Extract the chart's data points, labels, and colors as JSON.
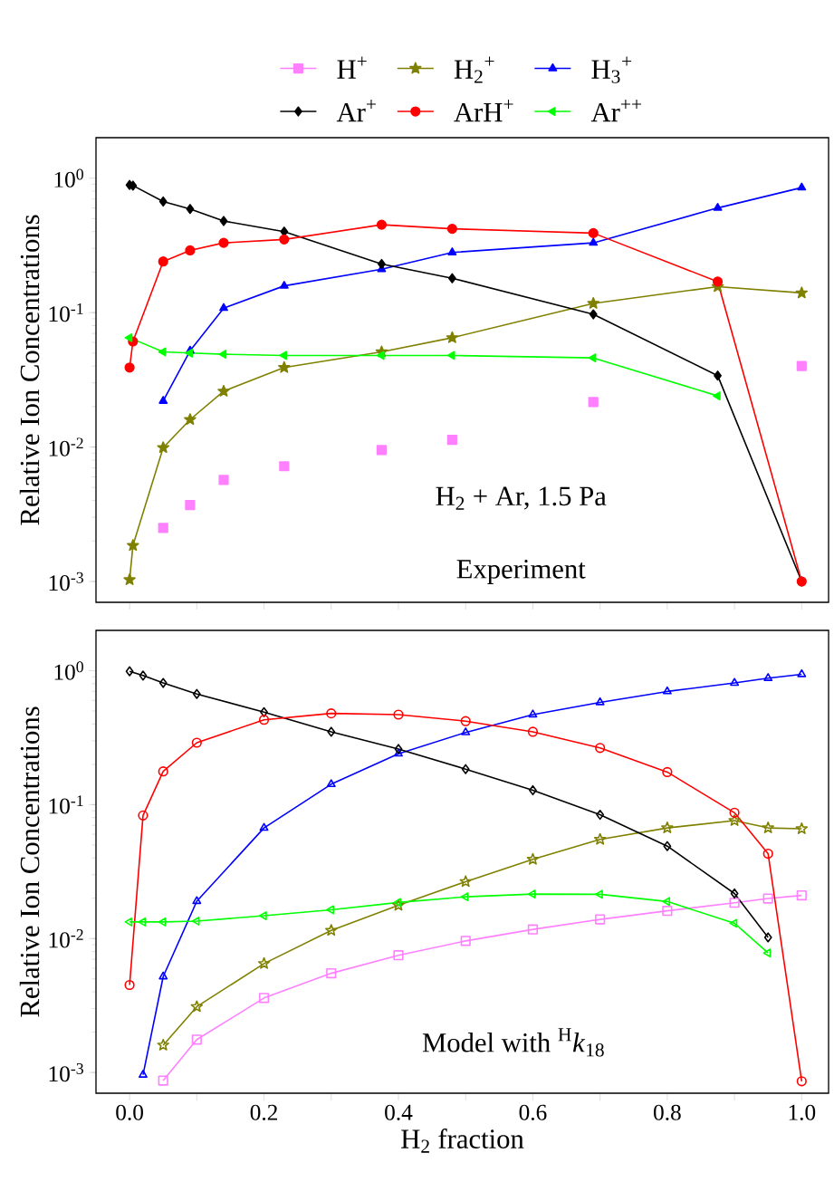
{
  "chart_data": [
    {
      "type": "line",
      "ylabel": "Relative Ion Concentrations",
      "annotations": [
        "H$_{2}$ + Ar, 1.5 Pa",
        "Experiment"
      ],
      "x": [
        0,
        0.005,
        0.05,
        0.09,
        0.14,
        0.23,
        0.375,
        0.48,
        0.69,
        0.875,
        1.0
      ],
      "xlim": [
        -0.05,
        1.04
      ],
      "xticks": [
        {
          "value": 0,
          "label": null
        },
        {
          "value": 0.1,
          "label": null
        },
        {
          "value": 0.2,
          "label": null
        },
        {
          "value": 0.3,
          "label": null
        },
        {
          "value": 0.4,
          "label": null
        },
        {
          "value": 0.5,
          "label": null
        },
        {
          "value": 0.6,
          "label": null
        },
        {
          "value": 0.7,
          "label": null
        },
        {
          "value": 0.8,
          "label": null
        },
        {
          "value": 0.9,
          "label": null
        },
        {
          "value": 1.0,
          "label": null
        }
      ],
      "ylim": [
        0.0007,
        2
      ],
      "yticks": [
        {
          "value": 0.001,
          "label": "10$^{-3}$"
        },
        {
          "value": 0.01,
          "label": "10$^{-2}$"
        },
        {
          "value": 0.1,
          "label": "10$^{-1}$"
        },
        {
          "value": 1,
          "label": "10$^{0}$"
        }
      ],
      "log": "y",
      "tick_labels": "y",
      "legend": "top",
      "line_style": "solid",
      "series": [
        {
          "name": "H$^{+}$",
          "type": "scatter",
          "marker": "square",
          "color": "#ff80ff",
          "values": [
            null,
            null,
            0.0025,
            0.0037,
            0.0057,
            0.0072,
            0.0095,
            0.0113,
            0.0216,
            null,
            0.04
          ]
        },
        {
          "name": "H$_{2}$$^{+}$",
          "marker": "star",
          "color": "#808000",
          "values": [
            0.00103,
            0.00185,
            0.0099,
            0.016,
            0.026,
            0.039,
            0.051,
            0.065,
            0.117,
            0.156,
            0.14
          ]
        },
        {
          "name": "H$_{3}$$^{+}$",
          "marker": "triangle",
          "color": "#0000ff",
          "values": [
            null,
            null,
            0.022,
            0.052,
            0.108,
            0.158,
            0.21,
            0.28,
            0.33,
            0.6,
            0.85
          ]
        },
        {
          "name": "Ar$^{+}$",
          "marker": "diamond",
          "color": "#000000",
          "values": [
            0.89,
            0.88,
            0.67,
            0.59,
            0.48,
            0.4,
            0.23,
            0.18,
            0.097,
            0.034,
            0.001
          ]
        },
        {
          "name": "ArH$^{+}$",
          "marker": "circle",
          "color": "#ff0000",
          "values": [
            0.039,
            0.061,
            0.24,
            0.29,
            0.33,
            0.35,
            0.45,
            0.42,
            0.39,
            0.17,
            0.001
          ]
        },
        {
          "name": "Ar$^{++}$",
          "marker": "triangle-left",
          "color": "#00ff00",
          "values": [
            0.065,
            null,
            0.051,
            0.05,
            0.049,
            0.048,
            0.048,
            0.048,
            0.046,
            0.024,
            null
          ]
        }
      ]
    },
    {
      "type": "line",
      "xlabel": "H$_{2}$ fraction",
      "ylabel": "Relative Ion Concentrations",
      "annotations": [
        "Model with $^{H}$*k*$_{18}$"
      ],
      "x": [
        0,
        0.02,
        0.05,
        0.1,
        0.2,
        0.3,
        0.4,
        0.5,
        0.6,
        0.7,
        0.8,
        0.9,
        0.95,
        1.0
      ],
      "xlim": [
        -0.05,
        1.04
      ],
      "xticks": [
        {
          "value": 0,
          "label": "0.0"
        },
        {
          "value": 0.1,
          "label": null
        },
        {
          "value": 0.2,
          "label": "0.2"
        },
        {
          "value": 0.3,
          "label": null
        },
        {
          "value": 0.4,
          "label": "0.4"
        },
        {
          "value": 0.5,
          "label": null
        },
        {
          "value": 0.6,
          "label": "0.6"
        },
        {
          "value": 0.7,
          "label": null
        },
        {
          "value": 0.8,
          "label": "0.8"
        },
        {
          "value": 0.9,
          "label": null
        },
        {
          "value": 1.0,
          "label": "1.0"
        }
      ],
      "ylim": [
        0.0007,
        2
      ],
      "yticks": [
        {
          "value": 0.001,
          "label": "10$^{-3}$"
        },
        {
          "value": 0.01,
          "label": "10$^{-2}$"
        },
        {
          "value": 0.1,
          "label": "10$^{-1}$"
        },
        {
          "value": 1,
          "label": "10$^{0}$"
        }
      ],
      "log": "y",
      "line_style": "solid",
      "series": [
        {
          "marker": "square",
          "color": "#ff80ff",
          "values": [
            null,
            null,
            0.00087,
            0.00176,
            0.0036,
            0.0055,
            0.0075,
            0.0096,
            0.0117,
            0.0139,
            0.0161,
            0.0185,
            0.0199,
            0.021
          ]
        },
        {
          "marker": "star",
          "color": "#808000",
          "values": [
            null,
            null,
            0.0016,
            0.0031,
            0.0065,
            0.0115,
            0.0177,
            0.0266,
            0.039,
            0.055,
            0.067,
            0.076,
            0.067,
            0.066
          ]
        },
        {
          "marker": "triangle",
          "color": "#0000ff",
          "values": [
            null,
            0.00096,
            0.0052,
            0.019,
            0.067,
            0.142,
            0.24,
            0.346,
            0.47,
            0.58,
            0.7,
            0.81,
            0.88,
            0.94
          ]
        },
        {
          "marker": "diamond",
          "color": "#000000",
          "values": [
            0.99,
            0.92,
            0.81,
            0.67,
            0.49,
            0.35,
            0.26,
            0.184,
            0.128,
            0.084,
            0.049,
            0.0217,
            0.0102,
            null
          ]
        },
        {
          "marker": "circle",
          "color": "#ff0000",
          "values": [
            0.0045,
            0.083,
            0.177,
            0.29,
            0.43,
            0.48,
            0.47,
            0.42,
            0.35,
            0.265,
            0.175,
            0.087,
            0.043,
            0.00086
          ]
        },
        {
          "marker": "triangle-left",
          "color": "#00ff00",
          "values": [
            0.0133,
            0.0133,
            0.0133,
            0.0135,
            0.0148,
            0.0164,
            0.0186,
            0.0205,
            0.0215,
            0.0214,
            0.0189,
            0.013,
            0.0078,
            null
          ]
        }
      ]
    }
  ]
}
